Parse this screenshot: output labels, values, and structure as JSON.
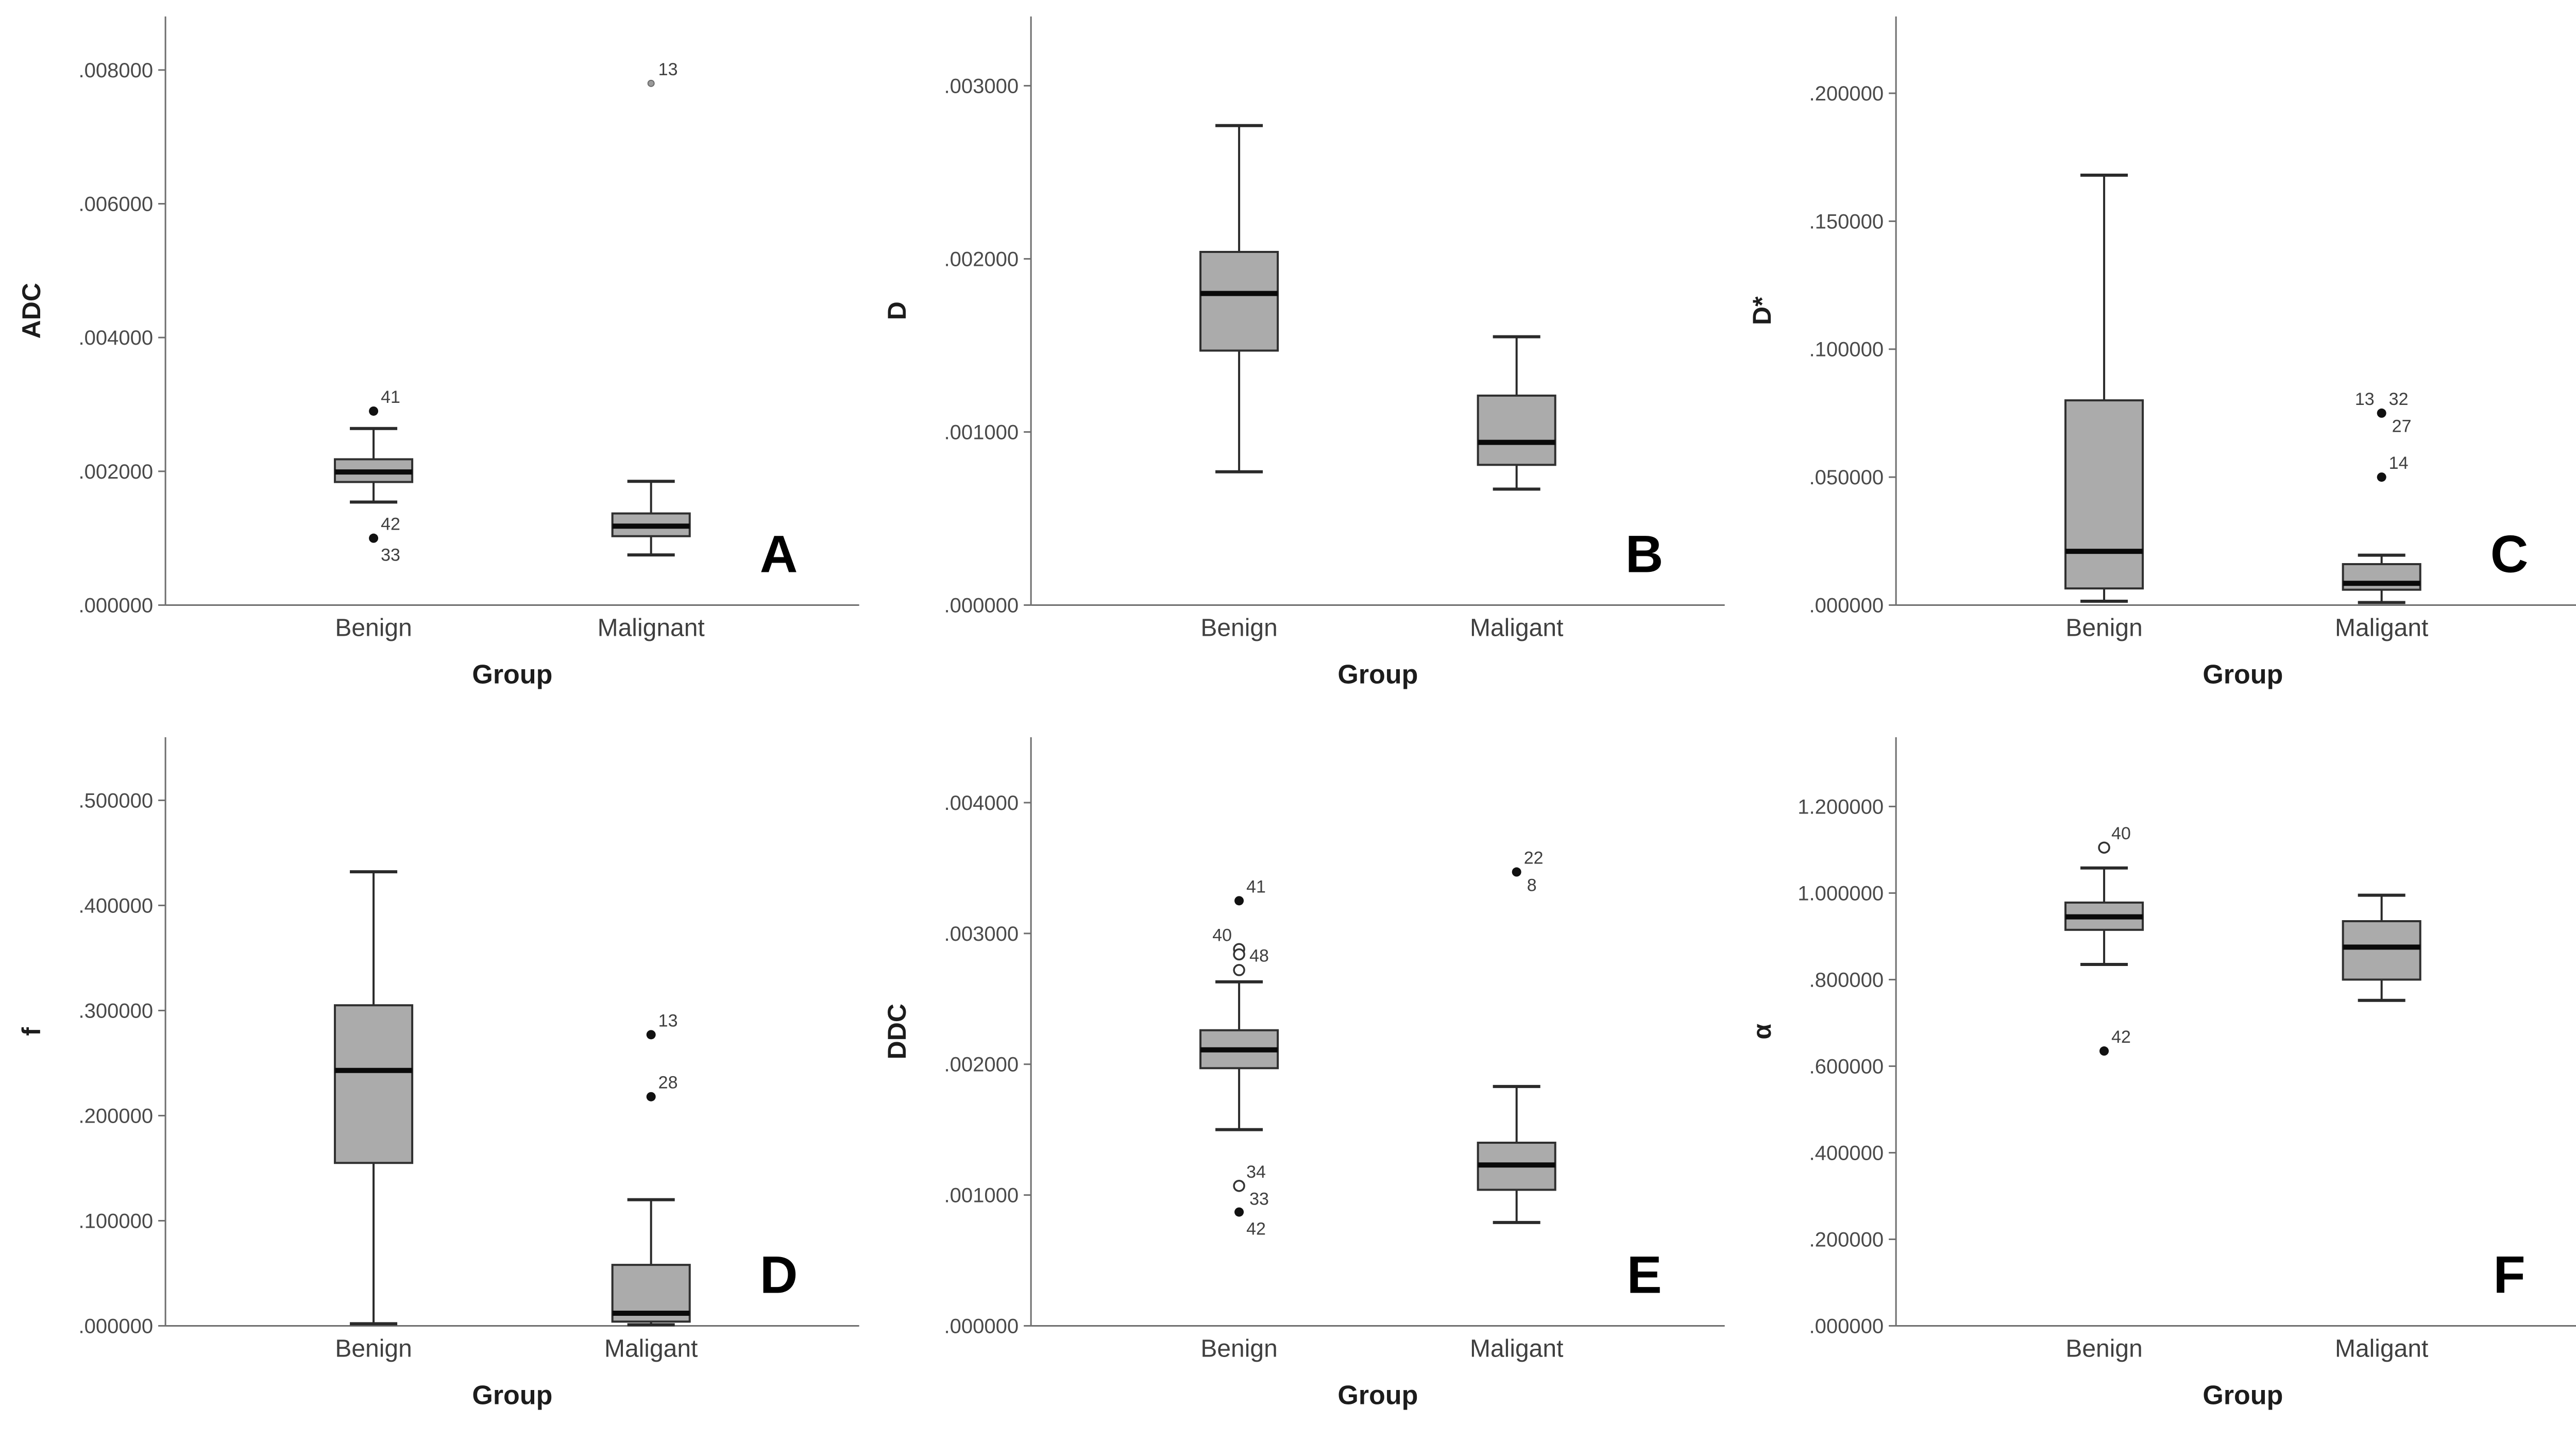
{
  "colors": {
    "background": "#ffffff",
    "box_fill": "#ababab",
    "box_stroke": "#2f2f2f",
    "median": "#0a0a0a",
    "whisker": "#2a2a2a",
    "axis": "#6e6e6e",
    "tick_text": "#4a4a4a",
    "category_text": "#3f3f3f",
    "title_text": "#1c1c1c",
    "outlier_fill": "#111111",
    "outlier_label": "#3f3f3f",
    "panel_letter": "#000000"
  },
  "chart_data": [
    {
      "type": "box",
      "panel_label": "A",
      "ylabel": "ADC",
      "xlabel": "Group",
      "categories": [
        "Benign",
        "Malignant"
      ],
      "ylim": [
        0,
        0.0088
      ],
      "yticks": [
        {
          "value": 0.0,
          "label": ".000000"
        },
        {
          "value": 0.002,
          "label": ".002000"
        },
        {
          "value": 0.004,
          "label": ".004000"
        },
        {
          "value": 0.006,
          "label": ".006000"
        },
        {
          "value": 0.008,
          "label": ".008000"
        }
      ],
      "boxes": [
        {
          "category": "Benign",
          "whisker_low": 0.00154,
          "q1": 0.00184,
          "median": 0.00199,
          "q3": 0.00218,
          "whisker_high": 0.00264,
          "outliers": [
            {
              "value": 0.0029,
              "marker": "filled",
              "label": "41",
              "label_pos": "above-right"
            },
            {
              "value": 0.001,
              "marker": "filled",
              "label": "42",
              "label_pos": "above-right"
            },
            {
              "value": 0.001,
              "marker": "none",
              "label": "33",
              "label_pos": "below-right"
            }
          ]
        },
        {
          "category": "Malignant",
          "whisker_low": 0.00075,
          "q1": 0.00103,
          "median": 0.00118,
          "q3": 0.00137,
          "whisker_high": 0.00185,
          "outliers": [
            {
              "value": 0.0078,
              "marker": "open-small",
              "label": "13",
              "label_pos": "above-right"
            }
          ]
        }
      ]
    },
    {
      "type": "box",
      "panel_label": "B",
      "ylabel": "D",
      "xlabel": "Group",
      "categories": [
        "Benign",
        "Maligant"
      ],
      "ylim": [
        0,
        0.0034
      ],
      "yticks": [
        {
          "value": 0.0,
          "label": ".000000"
        },
        {
          "value": 0.001,
          "label": ".001000"
        },
        {
          "value": 0.002,
          "label": ".002000"
        },
        {
          "value": 0.003,
          "label": ".003000"
        }
      ],
      "boxes": [
        {
          "category": "Benign",
          "whisker_low": 0.00077,
          "q1": 0.00147,
          "median": 0.0018,
          "q3": 0.00204,
          "whisker_high": 0.00277,
          "outliers": []
        },
        {
          "category": "Maligant",
          "whisker_low": 0.00067,
          "q1": 0.00081,
          "median": 0.00094,
          "q3": 0.00121,
          "whisker_high": 0.00155,
          "outliers": []
        }
      ]
    },
    {
      "type": "box",
      "panel_label": "C",
      "ylabel": "D*",
      "xlabel": "Group",
      "categories": [
        "Benign",
        "Maligant"
      ],
      "ylim": [
        0,
        0.23
      ],
      "yticks": [
        {
          "value": 0.0,
          "label": ".000000"
        },
        {
          "value": 0.05,
          "label": ".050000"
        },
        {
          "value": 0.1,
          "label": ".100000"
        },
        {
          "value": 0.15,
          "label": ".150000"
        },
        {
          "value": 0.2,
          "label": ".200000"
        }
      ],
      "boxes": [
        {
          "category": "Benign",
          "whisker_low": 0.0015,
          "q1": 0.0065,
          "median": 0.021,
          "q3": 0.08,
          "whisker_high": 0.168,
          "outliers": []
        },
        {
          "category": "Maligant",
          "whisker_low": 0.001,
          "q1": 0.006,
          "median": 0.0085,
          "q3": 0.016,
          "whisker_high": 0.0195,
          "outliers": [
            {
              "value": 0.075,
              "marker": "filled",
              "label": "13",
              "label_pos": "above-left"
            },
            {
              "value": 0.075,
              "marker": "none",
              "label": "32",
              "label_pos": "above-right"
            },
            {
              "value": 0.0705,
              "marker": "none",
              "label": "27",
              "label_pos": "right"
            },
            {
              "value": 0.05,
              "marker": "filled",
              "label": "14",
              "label_pos": "above-right"
            }
          ]
        }
      ]
    },
    {
      "type": "box",
      "panel_label": "D",
      "ylabel": "f",
      "xlabel": "Group",
      "categories": [
        "Benign",
        "Maligant"
      ],
      "ylim": [
        0,
        0.56
      ],
      "yticks": [
        {
          "value": 0.0,
          "label": ".000000"
        },
        {
          "value": 0.1,
          "label": ".100000"
        },
        {
          "value": 0.2,
          "label": ".200000"
        },
        {
          "value": 0.3,
          "label": ".300000"
        },
        {
          "value": 0.4,
          "label": ".400000"
        },
        {
          "value": 0.5,
          "label": ".500000"
        }
      ],
      "boxes": [
        {
          "category": "Benign",
          "whisker_low": 0.002,
          "q1": 0.155,
          "median": 0.243,
          "q3": 0.305,
          "whisker_high": 0.432,
          "outliers": []
        },
        {
          "category": "Maligant",
          "whisker_low": 0.001,
          "q1": 0.004,
          "median": 0.012,
          "q3": 0.058,
          "whisker_high": 0.12,
          "outliers": [
            {
              "value": 0.277,
              "marker": "filled",
              "label": "13",
              "label_pos": "above-right"
            },
            {
              "value": 0.218,
              "marker": "filled",
              "label": "28",
              "label_pos": "above-right"
            }
          ]
        }
      ]
    },
    {
      "type": "box",
      "panel_label": "E",
      "ylabel": "DDC",
      "xlabel": "Group",
      "categories": [
        "Benign",
        "Maligant"
      ],
      "ylim": [
        0,
        0.0045
      ],
      "yticks": [
        {
          "value": 0.0,
          "label": ".000000"
        },
        {
          "value": 0.001,
          "label": ".001000"
        },
        {
          "value": 0.002,
          "label": ".002000"
        },
        {
          "value": 0.003,
          "label": ".003000"
        },
        {
          "value": 0.004,
          "label": ".004000"
        }
      ],
      "boxes": [
        {
          "category": "Benign",
          "whisker_low": 0.0015,
          "q1": 0.00197,
          "median": 0.00211,
          "q3": 0.00226,
          "whisker_high": 0.00263,
          "outliers": [
            {
              "value": 0.00325,
              "marker": "filled",
              "label": "41",
              "label_pos": "above-right"
            },
            {
              "value": 0.00288,
              "marker": "open",
              "label": "40",
              "label_pos": "above-left"
            },
            {
              "value": 0.00284,
              "marker": "open",
              "label": "48",
              "label_pos": "right"
            },
            {
              "value": 0.00272,
              "marker": "open",
              "label": "",
              "label_pos": "right"
            },
            {
              "value": 0.00107,
              "marker": "open",
              "label": "34",
              "label_pos": "above-right"
            },
            {
              "value": 0.00098,
              "marker": "none",
              "label": "33",
              "label_pos": "right"
            },
            {
              "value": 0.00087,
              "marker": "filled",
              "label": "42",
              "label_pos": "below-right"
            }
          ]
        },
        {
          "category": "Maligant",
          "whisker_low": 0.00079,
          "q1": 0.00104,
          "median": 0.00123,
          "q3": 0.0014,
          "whisker_high": 0.00183,
          "outliers": [
            {
              "value": 0.00347,
              "marker": "filled",
              "label": "22",
              "label_pos": "above-right"
            },
            {
              "value": 0.00338,
              "marker": "none",
              "label": "8",
              "label_pos": "right"
            }
          ]
        }
      ]
    },
    {
      "type": "box",
      "panel_label": "F",
      "ylabel": "α",
      "xlabel": "Group",
      "categories": [
        "Benign",
        "Maligant"
      ],
      "ylim": [
        0,
        1.36
      ],
      "yticks": [
        {
          "value": 0.0,
          "label": ".000000"
        },
        {
          "value": 0.2,
          "label": ".200000"
        },
        {
          "value": 0.4,
          "label": ".400000"
        },
        {
          "value": 0.6,
          "label": ".600000"
        },
        {
          "value": 0.8,
          "label": ".800000"
        },
        {
          "value": 1.0,
          "label": "1.000000"
        },
        {
          "value": 1.2,
          "label": "1.200000"
        }
      ],
      "boxes": [
        {
          "category": "Benign",
          "whisker_low": 0.835,
          "q1": 0.915,
          "median": 0.945,
          "q3": 0.978,
          "whisker_high": 1.058,
          "outliers": [
            {
              "value": 1.105,
              "marker": "open",
              "label": "40",
              "label_pos": "above-right"
            },
            {
              "value": 0.635,
              "marker": "filled",
              "label": "42",
              "label_pos": "above-right"
            }
          ]
        },
        {
          "category": "Maligant",
          "whisker_low": 0.752,
          "q1": 0.8,
          "median": 0.875,
          "q3": 0.935,
          "whisker_high": 0.995,
          "outliers": []
        }
      ]
    }
  ]
}
